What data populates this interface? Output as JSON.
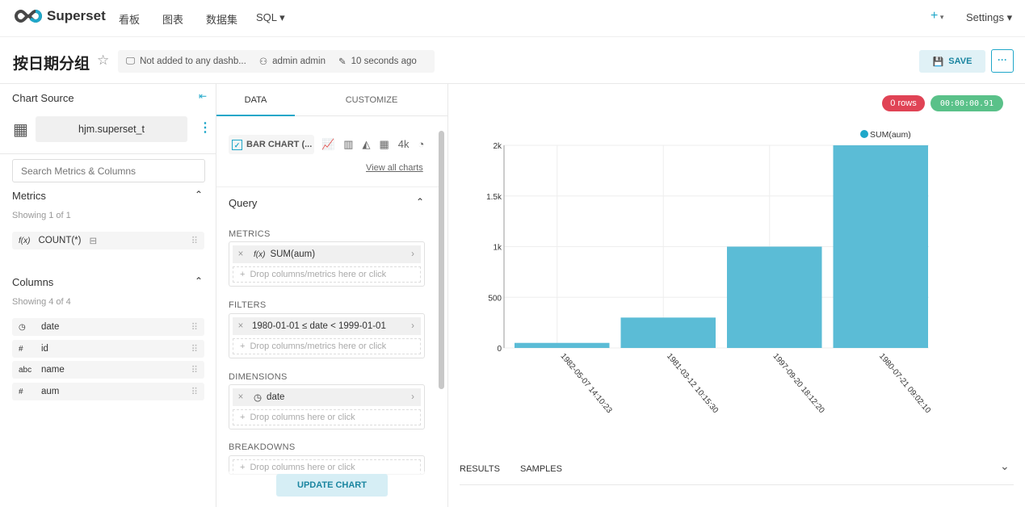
{
  "nav": {
    "brand": "Superset",
    "items": [
      "看板",
      "图表",
      "数据集",
      "SQL"
    ],
    "plus": "+",
    "settings": "Settings"
  },
  "header": {
    "title": "按日期分组",
    "dashboards": "Not added to any dashb...",
    "owner": "admin admin",
    "modified": "10 seconds ago",
    "save": "SAVE",
    "more": "···"
  },
  "source": {
    "title": "Chart Source",
    "dataset": "hjm.superset_t",
    "search_placeholder": "Search Metrics & Columns",
    "metrics_title": "Metrics",
    "metrics_count": "Showing 1 of 1",
    "metrics": [
      {
        "type": "f(x)",
        "name": "COUNT(*)"
      }
    ],
    "columns_title": "Columns",
    "columns_count": "Showing 4 of 4",
    "columns": [
      {
        "type": "◷",
        "name": "date"
      },
      {
        "type": "#",
        "name": "id"
      },
      {
        "type": "abc",
        "name": "name"
      },
      {
        "type": "#",
        "name": "aum"
      }
    ]
  },
  "controls": {
    "tabs": [
      "DATA",
      "CUSTOMIZE"
    ],
    "viz": "BAR CHART (...",
    "big_number": "4k",
    "view_all": "View all charts",
    "query": "Query",
    "metrics_label": "METRICS",
    "metric": "SUM(aum)",
    "fx": "f(x)",
    "drop_metrics": "Drop columns/metrics here or click",
    "filters_label": "FILTERS",
    "filter": "1980-01-01 ≤ date < 1999-01-01",
    "drop_filters": "Drop columns/metrics here or click",
    "dimensions_label": "DIMENSIONS",
    "dimension": "date",
    "drop_dims": "Drop columns here or click",
    "breakdowns_label": "BREAKDOWNS",
    "drop_breakdowns": "Drop columns here or click",
    "update": "UPDATE CHART"
  },
  "results": {
    "rows": "0 rows",
    "time": "00:00:00.91",
    "tabs": [
      "RESULTS",
      "SAMPLES"
    ]
  },
  "chart_data": {
    "type": "bar",
    "categories": [
      "1982-05-07 14:10:23",
      "1981-03-12 10:15:30",
      "1997-09-20 18:12:20",
      "1980-07-21 09:02:10"
    ],
    "series": [
      {
        "name": "SUM(aum)",
        "values": [
          50,
          300,
          1000,
          2000
        ]
      }
    ],
    "ylim": [
      0,
      2000
    ],
    "yticks": [
      "0",
      "500",
      "1k",
      "1.5k",
      "2k"
    ],
    "ytick_values": [
      0,
      500,
      1000,
      1500,
      2000
    ],
    "grid": true,
    "legend": "top-right",
    "color": "#5bbcd6"
  }
}
